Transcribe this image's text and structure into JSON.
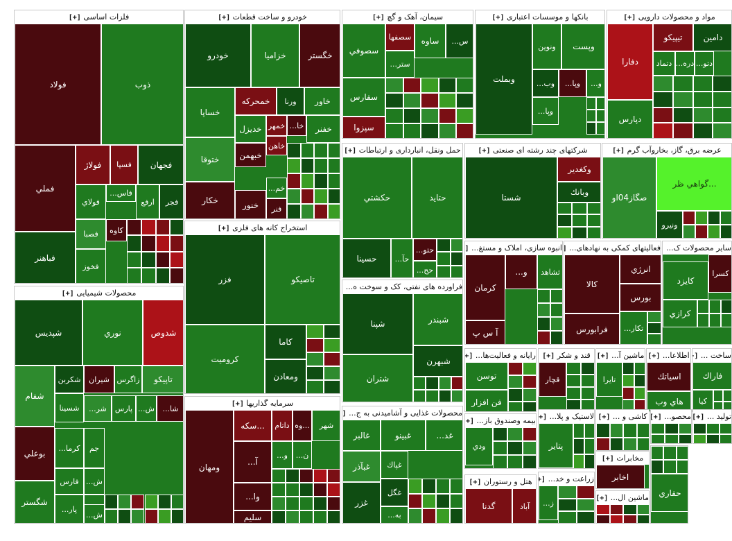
{
  "colors": {
    "dark_red": "#4a0a0e",
    "red": "#7a0f14",
    "bright_red": "#ac1218",
    "dark_green": "#0f4d12",
    "green": "#1f7a1f",
    "mid_green": "#2e8b2e",
    "light_green": "#3a9d23",
    "lime": "#55f22b"
  },
  "plus": "[+]",
  "sectors": [
    {
      "title": "فلزات اساسی",
      "tiles": [
        "فولاد",
        "ذوب",
        "فملي",
        "فباهنر",
        "فولاژ",
        "فسپا",
        "فجهان",
        "فولاي",
        "فاس...",
        "ارفع",
        "فجر",
        "فصبا",
        "كاوه",
        "فخوز"
      ]
    },
    {
      "title": "خودرو و ساخت قطعات",
      "tiles": [
        "خودرو",
        "خزاميا",
        "خگستر",
        "خساپا",
        "خمحركه",
        "ورنا",
        "خاور",
        "خديزل",
        "خمهر",
        "خا...",
        "خفنر",
        "ختوقا",
        "خاهن",
        "خبهمن",
        "خكار",
        "خنور",
        "خم...",
        "فنر"
      ]
    },
    {
      "title": "سیمان، آهک و گچ",
      "tiles": [
        "سصوفي",
        "سصفها",
        "ساوه",
        "س...",
        "ستر...",
        "سفارس",
        "سپزوا"
      ]
    },
    {
      "title": "بانکها و موسسات اعتباری",
      "tiles": [
        "وبملت",
        "ونوين",
        "وپست",
        "وب...",
        "وپا...",
        "و...",
        "وپا..."
      ]
    },
    {
      "title": "مواد و محصولات دارویی",
      "tiles": [
        "دفارا",
        "تيپيكو",
        "دامين",
        "دتماد",
        "دره...",
        "دتو...",
        "دپارس"
      ]
    },
    {
      "title": "حمل ونقل، انبارداری و ارتباطات",
      "tiles": [
        "حكشتي",
        "حتايد",
        "حسينا",
        "حآ...",
        "حتو...",
        "حح..."
      ]
    },
    {
      "title": "شرکتهای چند رشته ای صنعتی",
      "tiles": [
        "شستا",
        "وكغدير",
        "وبانك"
      ]
    },
    {
      "title": "عرضه برق، گاز، بخاروآب گرم",
      "tiles": [
        "صگاز04او",
        "...گواهي ظر",
        "ونيرو"
      ]
    },
    {
      "title": "فراورده های نفتی، کک و سوخت ه...",
      "tiles": [
        "شپنا",
        "شبندر",
        "شبهرن",
        "شتران"
      ]
    },
    {
      "title": "انبوه سازی، املاک و مستغ...",
      "tiles": [
        "كرمان",
        "و...",
        "ثشاهد",
        "آ س پ"
      ]
    },
    {
      "title": "فعالیتهای کمکی به نهادهای...",
      "tiles": [
        "كالا",
        "انرژي",
        "بورس",
        "فرابورس",
        "تكار..."
      ]
    },
    {
      "title": "سایر محصولات ک...",
      "tiles": [
        "كسرا",
        "كايزد",
        "كرازي"
      ]
    },
    {
      "title": "استخراج کانه های فلزی",
      "tiles": [
        "فزر",
        "تاصيكو",
        "كروميت",
        "كاما",
        "ومعادن"
      ]
    },
    {
      "title": "محصولات شیمیایی",
      "tiles": [
        "شپديس",
        "نوري",
        "شدوص",
        "شفام",
        "شكربن",
        "شيران",
        "زاگرس",
        "تاپيكو",
        "شسينا",
        "شر...",
        "پارس",
        "ش...",
        "شا...",
        "بوعلي",
        "كرما...",
        "جم",
        "فارس",
        "ش...",
        "خر...",
        "شگستر",
        "پار...",
        "ش..."
      ]
    },
    {
      "title": "سرمایه گذاریها",
      "tiles": [
        "ومهان",
        "...سكه",
        "داتام",
        "...وه",
        "شهر",
        "و...",
        "آ...",
        "ن...",
        "وا...",
        "سليم",
        "...سكه0312"
      ]
    },
    {
      "title": "رایانه و فعالیت‌ها...",
      "tiles": [
        "توسن",
        "فن افزار"
      ]
    },
    {
      "title": "قند و شکر",
      "tiles": [
        "قچار"
      ]
    },
    {
      "title": "ماشین آ...",
      "tiles": [
        "تايرا"
      ]
    },
    {
      "title": "اطلاعا...",
      "tiles": [
        "اسياتك",
        "هاي وب"
      ]
    },
    {
      "title": "ساخت ...",
      "tiles": [
        "فاراك",
        "كيا"
      ]
    },
    {
      "title": "محصولات غذایی و آشامیدنی به ج...",
      "tiles": [
        "غالبر",
        "غبينو",
        "غد...",
        "غپاك",
        "غبآذر",
        "غگل",
        "غزر",
        "به..."
      ]
    },
    {
      "title": "بیمه وصندوق باز...",
      "tiles": [
        "ودي"
      ]
    },
    {
      "title": "لاستیک و پلا...",
      "tiles": [
        "پتاير"
      ]
    },
    {
      "title": "کاشی و ...",
      "tiles": []
    },
    {
      "title": "محصو...",
      "tiles": []
    },
    {
      "title": "تولید ...",
      "tiles": []
    },
    {
      "title": "زراعت و خد...",
      "tiles": [
        "ز..."
      ]
    },
    {
      "title": "مخابرات",
      "tiles": [
        "اخابر"
      ]
    },
    {
      "title": "هتل و رستوران",
      "tiles": [
        "گدنا",
        "آباد"
      ]
    },
    {
      "title": "ماشین ال...",
      "tiles": []
    },
    {
      "title": "",
      "tiles": [
        "حفاري"
      ]
    }
  ]
}
